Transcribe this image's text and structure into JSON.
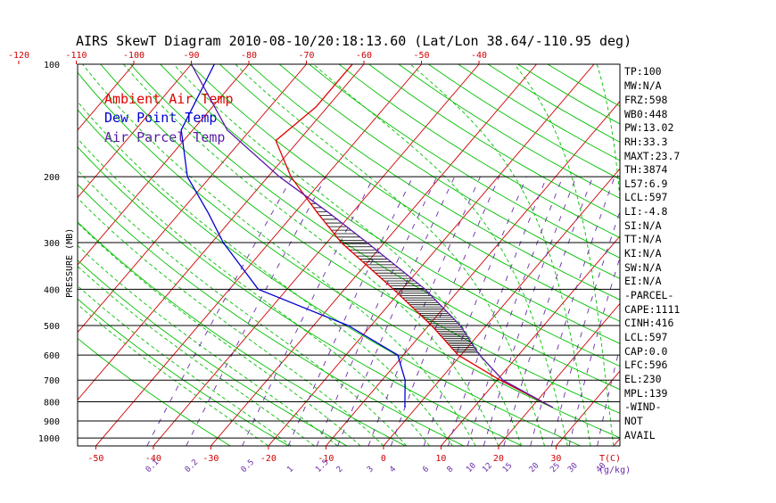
{
  "title": "AIRS SkewT Diagram 2010-08-10/20:18:13.60 (Lat/Lon 38.64/-110.95 deg)",
  "ylabel": "PRESSURE (MB)",
  "xlabel_bottom": "T(C)",
  "mixing_ratio_unit": "(g/kg)",
  "legend": [
    {
      "label": "Ambient Air Temp",
      "color": "#e00000"
    },
    {
      "label": "Dew Point Temp",
      "color": "#0000d0"
    },
    {
      "label": "Air Parcel Temp",
      "color": "#5a1aa8"
    }
  ],
  "stats": [
    "TP:100",
    "MW:N/A",
    "FRZ:598",
    "WB0:448",
    "PW:13.02",
    "RH:33.3",
    "MAXT:23.7",
    "TH:3874",
    "L57:6.9",
    "LCL:597",
    "LI:-4.8",
    "SI:N/A",
    "TT:N/A",
    "KI:N/A",
    "SW:N/A",
    "EI:N/A",
    "-PARCEL-",
    "CAPE:1111",
    "CINH:416",
    "LCL:597",
    "CAP:0.0",
    "LFC:596",
    "EL:230",
    "MPL:139",
    "-WIND-",
    "NOT",
    "AVAIL"
  ],
  "colors": {
    "temp": "#e00000",
    "dewpoint": "#0000d0",
    "parcel": "#5a1aa8",
    "isotherm": "#d00000",
    "dry_adiabat": "#00c000",
    "moist_adiabat": "#00c000",
    "mixing_ratio": "#6a2aa8",
    "isobar": "#000000",
    "hatch": "#000000"
  },
  "chart_data": {
    "type": "line",
    "y_scale": "log-pressure",
    "ylim": [
      1050,
      100
    ],
    "y_ticks": [
      100,
      200,
      300,
      400,
      500,
      600,
      700,
      800,
      900,
      1000
    ],
    "y_tick_labels": [
      "100",
      "200",
      "300",
      "400",
      "500",
      "600",
      "700",
      "800",
      "900",
      "1000"
    ],
    "top_ticks": [
      -120,
      -110,
      -100,
      -90,
      -80,
      -70,
      -60,
      -50,
      -40
    ],
    "top_tick_labels": [
      "-120",
      "-110",
      "-100",
      "-90",
      "-80",
      "-70",
      "-60",
      "-50",
      "-40"
    ],
    "bottom_ticks": [
      -50,
      -40,
      -30,
      -20,
      -10,
      0,
      10,
      20,
      30
    ],
    "bottom_tick_labels": [
      "-50",
      "-40",
      "-30",
      "-20",
      "-10",
      "0",
      "10",
      "20",
      "30"
    ],
    "mixing_ratio_labels": [
      "0.1",
      "0.2",
      "0.5",
      "1",
      "1.5",
      "2",
      "3",
      "4",
      "6",
      "8",
      "10",
      "12",
      "15",
      "20",
      "25",
      "30",
      "40"
    ],
    "series": [
      {
        "name": "Ambient Air Temp",
        "points": [
          {
            "p": 828,
            "t": 23.7
          },
          {
            "p": 700,
            "t": 10.5
          },
          {
            "p": 600,
            "t": -0.5
          },
          {
            "p": 500,
            "t": -9.5
          },
          {
            "p": 400,
            "t": -21.5
          },
          {
            "p": 300,
            "t": -37.5
          },
          {
            "p": 250,
            "t": -46
          },
          {
            "p": 200,
            "t": -56
          },
          {
            "p": 160,
            "t": -64
          },
          {
            "p": 130,
            "t": -62
          },
          {
            "p": 100,
            "t": -62
          }
        ]
      },
      {
        "name": "Dew Point Temp",
        "points": [
          {
            "p": 828,
            "t": -2
          },
          {
            "p": 700,
            "t": -6
          },
          {
            "p": 600,
            "t": -11
          },
          {
            "p": 500,
            "t": -24
          },
          {
            "p": 400,
            "t": -45
          },
          {
            "p": 300,
            "t": -58
          },
          {
            "p": 250,
            "t": -65
          },
          {
            "p": 200,
            "t": -74
          },
          {
            "p": 150,
            "t": -82
          },
          {
            "p": 100,
            "t": -86
          }
        ]
      },
      {
        "name": "Air Parcel Temp",
        "points": [
          {
            "p": 828,
            "t": 23.7
          },
          {
            "p": 700,
            "t": 11
          },
          {
            "p": 597,
            "t": 3
          },
          {
            "p": 500,
            "t": -4.5
          },
          {
            "p": 400,
            "t": -16
          },
          {
            "p": 300,
            "t": -33
          },
          {
            "p": 250,
            "t": -44
          },
          {
            "p": 200,
            "t": -58
          },
          {
            "p": 150,
            "t": -74
          },
          {
            "p": 100,
            "t": -90
          }
        ]
      }
    ],
    "grid": true
  }
}
